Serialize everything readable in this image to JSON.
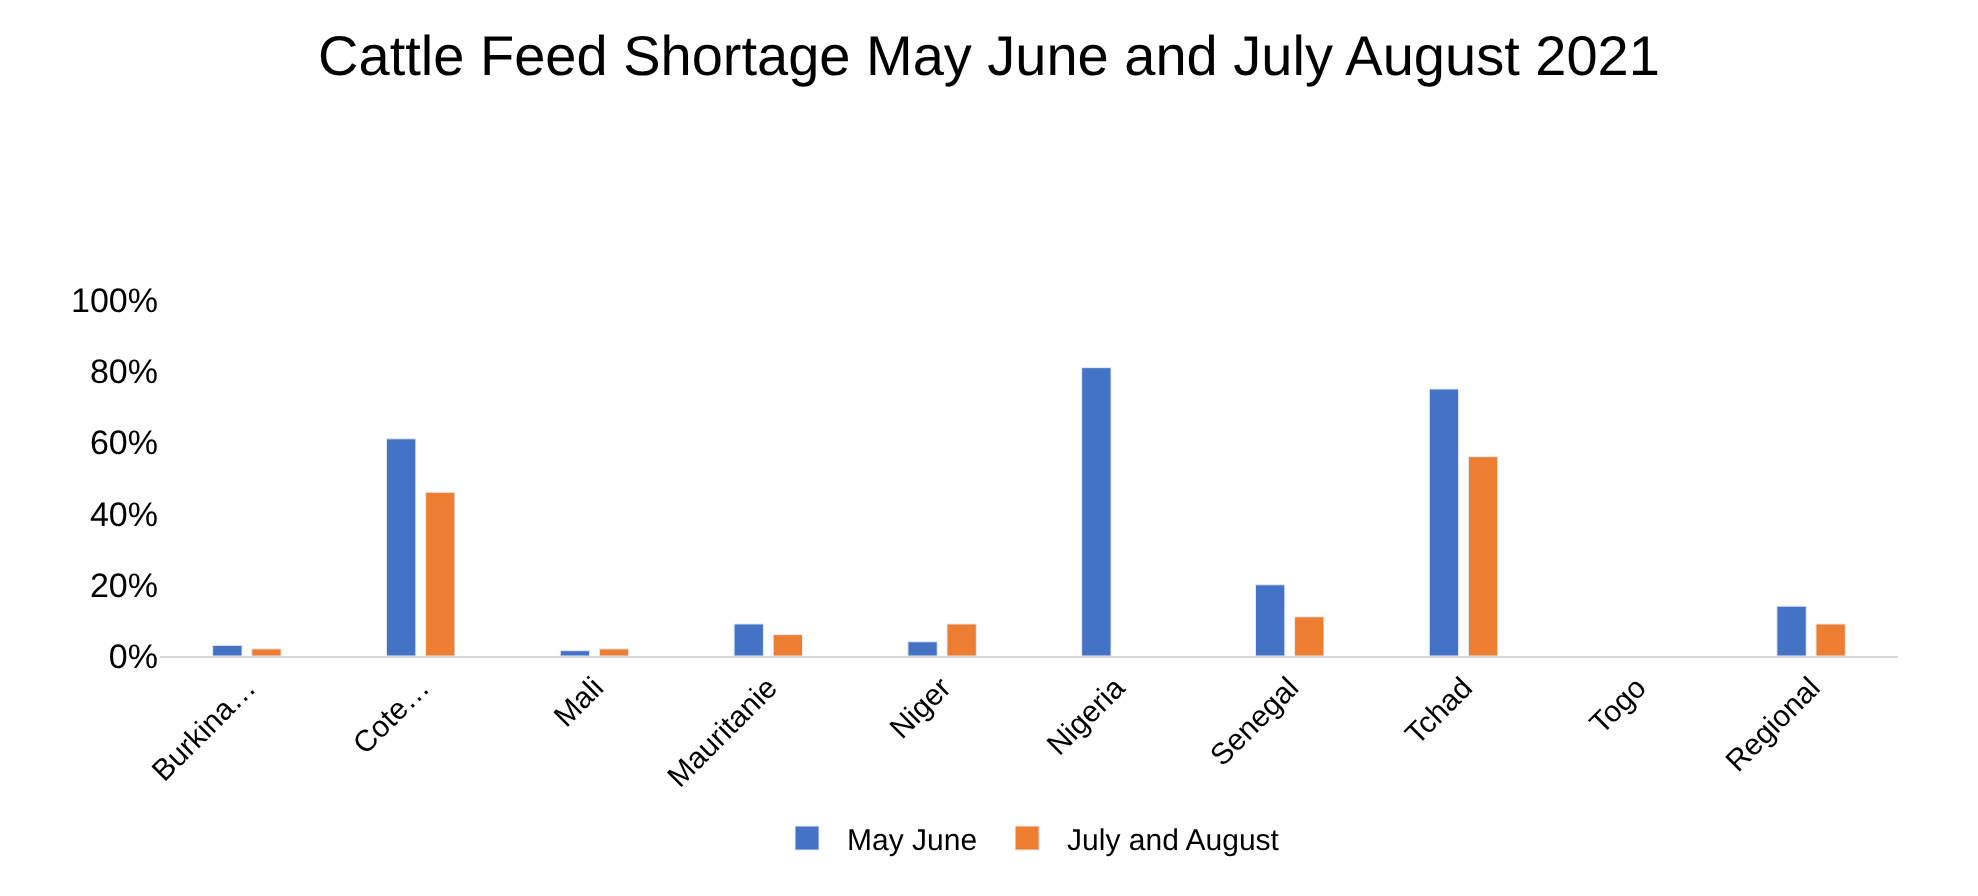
{
  "chart_data": {
    "type": "bar",
    "title": "Cattle Feed Shortage May June and July August 2021",
    "categories": [
      "Burkina…",
      "Cote…",
      "Mali",
      "Mauritanie",
      "Niger",
      "Nigeria",
      "Senegal",
      "Tchad",
      "Togo",
      "Regional"
    ],
    "series": [
      {
        "name": "May June",
        "color": "#4472c4",
        "values": [
          3,
          61,
          1.5,
          9,
          4,
          81,
          20,
          75,
          null,
          14
        ]
      },
      {
        "name": "July and August",
        "color": "#ed7d31",
        "values": [
          2,
          46,
          2,
          6,
          9,
          null,
          11,
          56,
          null,
          9
        ]
      }
    ],
    "ylim": [
      0,
      100
    ],
    "yticks": [
      {
        "value": 0,
        "label": "0%"
      },
      {
        "value": 20,
        "label": "20%"
      },
      {
        "value": 40,
        "label": "40%"
      },
      {
        "value": 60,
        "label": "60%"
      },
      {
        "value": 80,
        "label": "80%"
      },
      {
        "value": 100,
        "label": "100%"
      }
    ],
    "legend": "bottom"
  }
}
